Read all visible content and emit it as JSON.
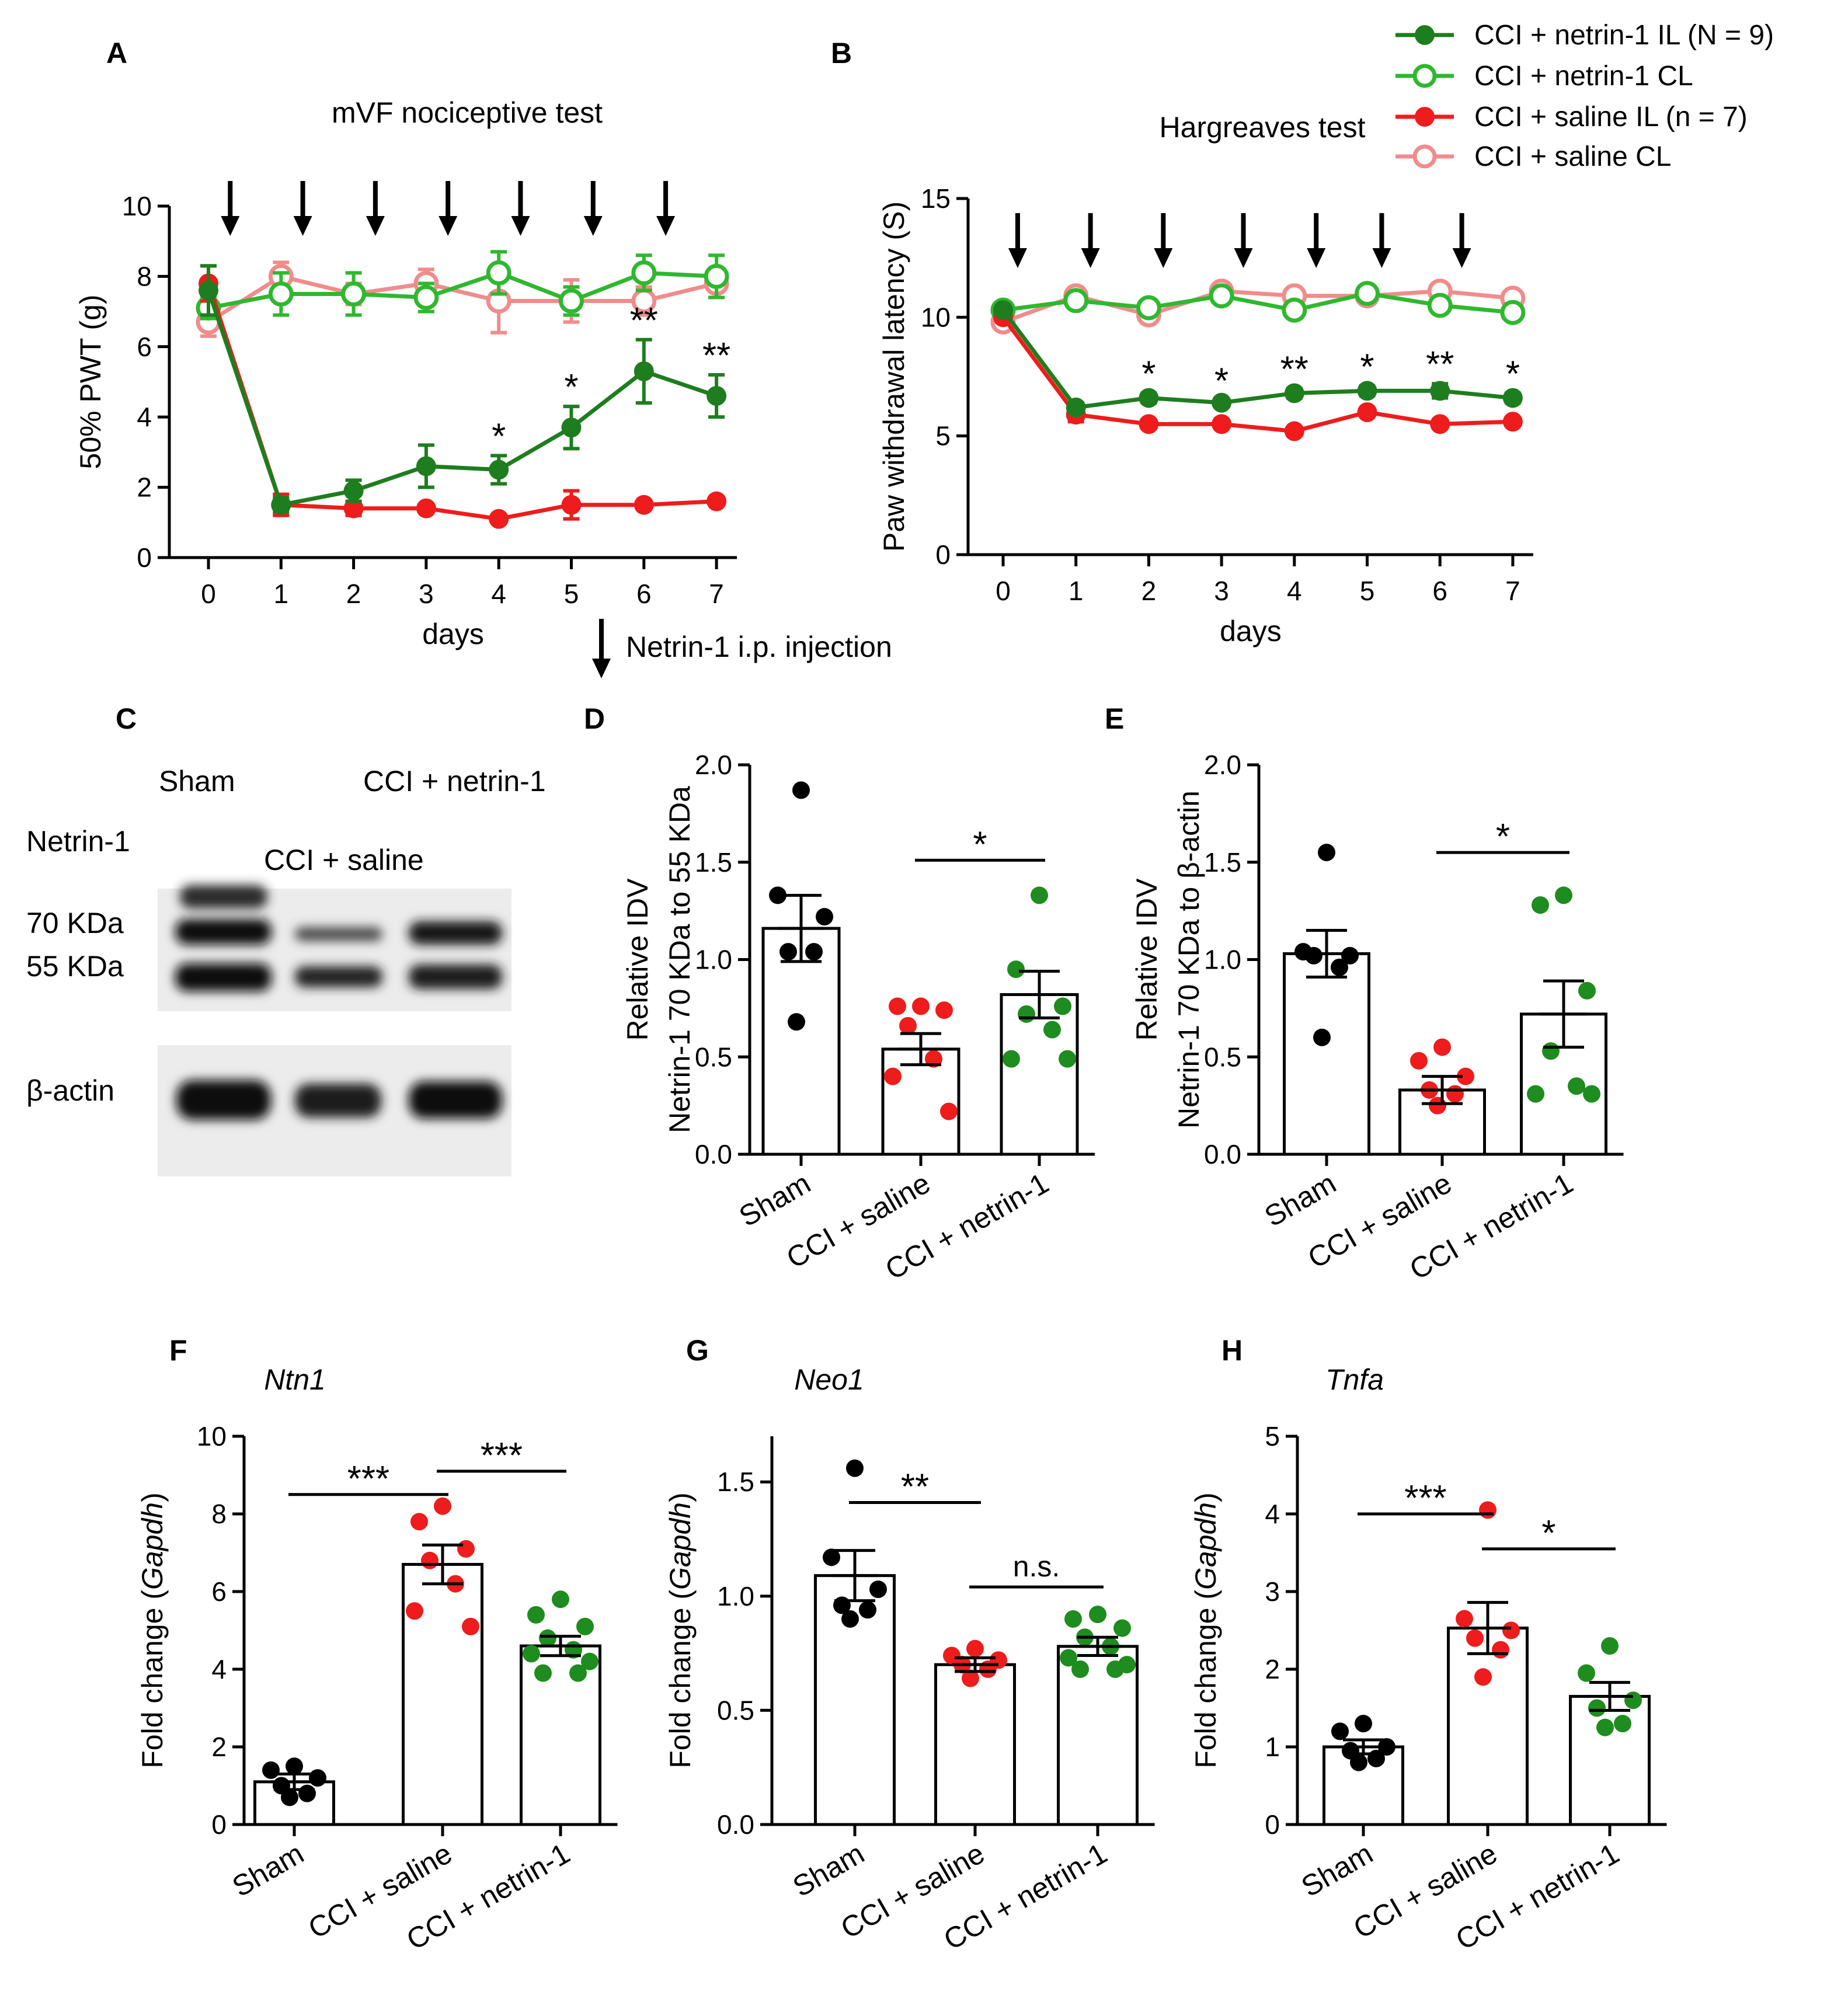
{
  "colors": {
    "netrin_il": "#1e7d1e",
    "netrin_cl": "#2fb82f",
    "saline_il": "#ee1c1c",
    "saline_cl": "#f08c8c",
    "sham": "#000000",
    "dot_saline": "#ee1c1c",
    "dot_netrin": "#1e8c1e"
  },
  "legend": {
    "netrin_il": "CCI + netrin-1 IL (N = 9)",
    "netrin_cl": "CCI + netrin-1 CL",
    "saline_il": "CCI + saline IL (n = 7)",
    "saline_cl": "CCI + saline CL"
  },
  "injection_note": "Netrin-1 i.p. injection",
  "blot": {
    "label": "C",
    "sham": "Sham",
    "cci_netrin": "CCI + netrin-1",
    "netrin1": "Netrin-1",
    "cci_saline": "CCI + saline",
    "kda70": "70 KDa",
    "kda55": "55 KDa",
    "actin": "β-actin"
  },
  "chart_data": [
    {
      "id": "A",
      "type": "line",
      "title": "mVF nociceptive test",
      "xlabel": "days",
      "ylabel": "50% PWT (g)",
      "ylim": [
        0,
        10
      ],
      "yticks": [
        "0",
        "2",
        "4",
        "6",
        "8",
        "10"
      ],
      "x": [
        0,
        1,
        2,
        3,
        4,
        5,
        6,
        7
      ],
      "xticks": [
        "0",
        "1",
        "2",
        "3",
        "4",
        "5",
        "6",
        "7"
      ],
      "injection_days": [
        0.3,
        1.3,
        2.3,
        3.3,
        4.3,
        5.3,
        6.3
      ],
      "series": [
        {
          "name": "CCI + saline CL",
          "key": "saline_cl",
          "filled": false,
          "values": [
            6.7,
            8.0,
            7.5,
            7.8,
            7.3,
            7.3,
            7.3,
            7.8
          ],
          "err": [
            0.4,
            0.4,
            0.3,
            0.4,
            0.9,
            0.6,
            0.4,
            0.4
          ]
        },
        {
          "name": "CCI + netrin-1 CL",
          "key": "netrin_cl",
          "filled": false,
          "values": [
            7.1,
            7.5,
            7.5,
            7.4,
            8.1,
            7.3,
            8.1,
            8.0
          ],
          "err": [
            0.3,
            0.6,
            0.6,
            0.4,
            0.6,
            0.4,
            0.5,
            0.6
          ]
        },
        {
          "name": "CCI + saline IL (n = 7)",
          "key": "saline_il",
          "filled": true,
          "values": [
            7.8,
            1.5,
            1.4,
            1.4,
            1.1,
            1.5,
            1.5,
            1.6
          ],
          "err": [
            0.5,
            0.3,
            0.2,
            0.1,
            0.1,
            0.4,
            0.1,
            0.1
          ]
        },
        {
          "name": "CCI + netrin-1 IL (N = 9)",
          "key": "netrin_il",
          "filled": true,
          "values": [
            7.6,
            1.5,
            1.9,
            2.6,
            2.5,
            3.7,
            5.3,
            4.6
          ],
          "err": [
            0.7,
            0.2,
            0.3,
            0.6,
            0.4,
            0.6,
            0.9,
            0.6
          ]
        }
      ],
      "annotations": [
        {
          "x": 4,
          "text": "*"
        },
        {
          "x": 5,
          "text": "*"
        },
        {
          "x": 6,
          "text": "**"
        },
        {
          "x": 7,
          "text": "**"
        }
      ]
    },
    {
      "id": "B",
      "type": "line",
      "title": "Hargreaves test",
      "xlabel": "days",
      "ylabel": "Paw withdrawal latency (S)",
      "ylim": [
        0,
        15
      ],
      "yticks": [
        "0",
        "5",
        "10",
        "15"
      ],
      "x": [
        0,
        1,
        2,
        3,
        4,
        5,
        6,
        7
      ],
      "xticks": [
        "0",
        "1",
        "2",
        "3",
        "4",
        "5",
        "6",
        "7"
      ],
      "injection_days": [
        0.2,
        1.2,
        2.2,
        3.3,
        4.3,
        5.2,
        6.3
      ],
      "series": [
        {
          "name": "CCI + saline CL",
          "key": "saline_cl",
          "filled": false,
          "values": [
            9.8,
            10.9,
            10.1,
            11.1,
            10.9,
            10.9,
            11.1,
            10.8
          ],
          "err": [
            0.2,
            0.2,
            0.2,
            0.2,
            0.2,
            0.2,
            0.2,
            0.2
          ]
        },
        {
          "name": "CCI + netrin-1 CL",
          "key": "netrin_cl",
          "filled": false,
          "values": [
            10.3,
            10.7,
            10.4,
            10.9,
            10.3,
            11.0,
            10.5,
            10.2
          ],
          "err": [
            0.2,
            0.2,
            0.2,
            0.2,
            0.2,
            0.2,
            0.2,
            0.2
          ]
        },
        {
          "name": "CCI + saline IL (n = 7)",
          "key": "saline_il",
          "filled": true,
          "values": [
            10.0,
            5.9,
            5.5,
            5.5,
            5.2,
            6.0,
            5.5,
            5.6
          ],
          "err": [
            0.2,
            0.3,
            0.1,
            0.1,
            0.1,
            0.1,
            0.1,
            0.1
          ]
        },
        {
          "name": "CCI + netrin-1 IL (N = 9)",
          "key": "netrin_il",
          "filled": true,
          "values": [
            10.3,
            6.2,
            6.6,
            6.4,
            6.8,
            6.9,
            6.9,
            6.6
          ],
          "err": [
            0.2,
            0.2,
            0.2,
            0.1,
            0.2,
            0.2,
            0.3,
            0.2
          ]
        }
      ],
      "annotations": [
        {
          "x": 2,
          "text": "*"
        },
        {
          "x": 3,
          "text": "*"
        },
        {
          "x": 4,
          "text": "**"
        },
        {
          "x": 5,
          "text": "*"
        },
        {
          "x": 6,
          "text": "**"
        },
        {
          "x": 7,
          "text": "*"
        }
      ]
    },
    {
      "id": "D",
      "type": "bar",
      "ylabel": [
        "Relative IDV",
        "Netrin-1 70 KDa to 55 KDa"
      ],
      "ylim": [
        0,
        2
      ],
      "yticks": [
        "0.0",
        "0.5",
        "1.0",
        "1.5",
        "2.0"
      ],
      "categories": [
        "Sham",
        "CCI + saline",
        "CCI + netrin-1"
      ],
      "values": [
        1.16,
        0.54,
        0.82
      ],
      "sem": [
        0.17,
        0.08,
        0.12
      ],
      "points": [
        [
          1.87,
          1.33,
          1.22,
          1.04,
          1.04,
          0.68
        ],
        [
          0.76,
          0.76,
          0.74,
          0.66,
          0.49,
          0.4,
          0.22
        ],
        [
          1.33,
          0.95,
          0.76,
          0.72,
          0.64,
          0.49,
          0.49
        ]
      ],
      "comparisons": [
        {
          "from": 1,
          "to": 2,
          "y": 1.51,
          "text": "*"
        }
      ]
    },
    {
      "id": "E",
      "type": "bar",
      "ylabel": [
        "Relative IDV",
        "Netrin-1 70 KDa to β-actin"
      ],
      "ylim": [
        0,
        2
      ],
      "yticks": [
        "0.0",
        "0.5",
        "1.0",
        "1.5",
        "2.0"
      ],
      "categories": [
        "Sham",
        "CCI + saline",
        "CCI + netrin-1"
      ],
      "values": [
        1.03,
        0.33,
        0.72
      ],
      "sem": [
        0.12,
        0.07,
        0.17
      ],
      "points": [
        [
          1.55,
          1.04,
          1.02,
          1.02,
          0.96,
          0.6
        ],
        [
          0.55,
          0.48,
          0.4,
          0.33,
          0.31,
          0.25
        ],
        [
          1.33,
          1.28,
          0.84,
          0.53,
          0.35,
          0.31,
          0.31
        ]
      ],
      "comparisons": [
        {
          "from": 1,
          "to": 2,
          "y": 1.55,
          "text": "*"
        }
      ]
    },
    {
      "id": "F",
      "type": "bar",
      "title": "Ntn1",
      "ylabel_html": [
        "Fold change (",
        "Gapdh",
        ")"
      ],
      "ylim": [
        0,
        10
      ],
      "yticks": [
        "0",
        "2",
        "4",
        "6",
        "8",
        "10"
      ],
      "categories": [
        "Sham",
        "CCI + saline",
        "CCI + netrin-1"
      ],
      "values": [
        1.1,
        6.7,
        4.6
      ],
      "sem": [
        0.2,
        0.5,
        0.25
      ],
      "points": [
        [
          1.5,
          1.4,
          1.2,
          1.0,
          0.8,
          0.7
        ],
        [
          8.2,
          7.8,
          7.1,
          6.8,
          6.2,
          5.5,
          5.1
        ],
        [
          5.8,
          5.4,
          5.1,
          4.8,
          4.5,
          4.4,
          4.2,
          3.9,
          3.9
        ]
      ],
      "comparisons": [
        {
          "from": 0,
          "to": 1,
          "y": 8.5,
          "text": "***"
        },
        {
          "from": 1,
          "to": 2,
          "y": 9.1,
          "text": "***"
        }
      ]
    },
    {
      "id": "G",
      "type": "bar",
      "title": "Neo1",
      "ylabel_html": [
        "Fold change (",
        "Gapdh",
        ")"
      ],
      "ylim": [
        0,
        1.7
      ],
      "yticks": [
        "0.0",
        "0.5",
        "1.0",
        "1.5"
      ],
      "categories": [
        "Sham",
        "CCI + saline",
        "CCI + netrin-1"
      ],
      "values": [
        1.09,
        0.7,
        0.78
      ],
      "sem": [
        0.11,
        0.03,
        0.04
      ],
      "points": [
        [
          1.56,
          1.17,
          1.03,
          0.96,
          0.94,
          0.9
        ],
        [
          0.77,
          0.74,
          0.72,
          0.7,
          0.68,
          0.64
        ],
        [
          0.92,
          0.9,
          0.86,
          0.82,
          0.78,
          0.73,
          0.7,
          0.68,
          0.68
        ]
      ],
      "comparisons": [
        {
          "from": 0,
          "to": 1,
          "y": 1.41,
          "text": "**"
        },
        {
          "from": 1,
          "to": 2,
          "y": 1.04,
          "text": "n.s."
        }
      ]
    },
    {
      "id": "H",
      "type": "bar",
      "title": "Tnfa",
      "ylabel_html": [
        "Fold change (",
        "Gapdh",
        ")"
      ],
      "ylim": [
        0,
        5
      ],
      "yticks": [
        "0",
        "1",
        "2",
        "3",
        "4",
        "5"
      ],
      "categories": [
        "Sham",
        "CCI + saline",
        "CCI + netrin-1"
      ],
      "values": [
        1.0,
        2.53,
        1.65
      ],
      "sem": [
        0.09,
        0.33,
        0.18
      ],
      "points": [
        [
          1.3,
          1.2,
          1.0,
          0.95,
          0.85,
          0.8
        ],
        [
          4.05,
          2.65,
          2.5,
          2.4,
          2.25,
          1.9
        ],
        [
          2.3,
          1.95,
          1.6,
          1.5,
          1.3,
          1.25
        ]
      ],
      "comparisons": [
        {
          "from": 0,
          "to": 1,
          "y": 4.0,
          "text": "***"
        },
        {
          "from": 1,
          "to": 2,
          "y": 3.55,
          "text": "*"
        }
      ]
    }
  ]
}
